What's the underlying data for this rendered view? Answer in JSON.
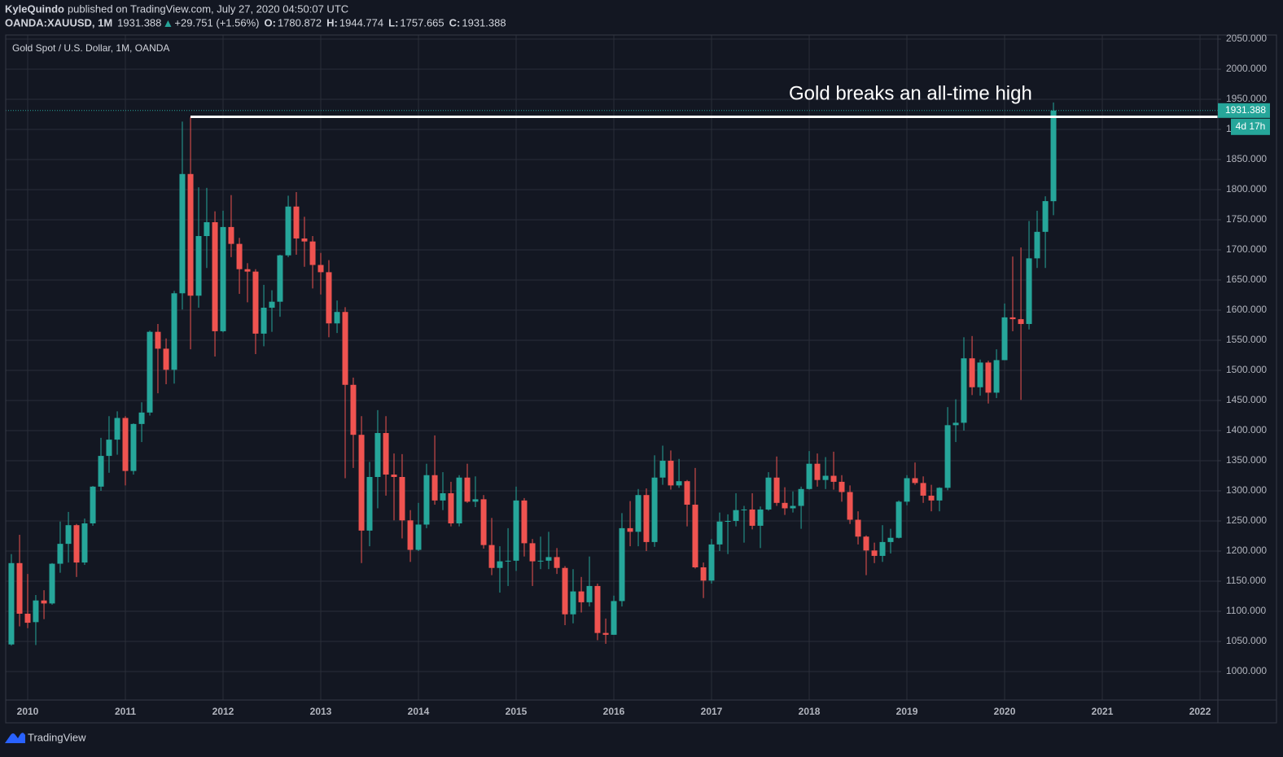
{
  "header": {
    "author": "KyleQuindo",
    "published": "published on TradingView.com, July 27, 2020 04:50:07 UTC",
    "symbol": "OANDA:XAUUSD, 1M",
    "change": "+29.751 (+1.56%)",
    "ohlc_labels": [
      "O:",
      "H:",
      "L:",
      "C:"
    ]
  },
  "footer": {
    "brand": "TradingView"
  },
  "chart_data": {
    "type": "candlestick",
    "title": "Gold Spot / U.S. Dollar, 1M, OANDA",
    "annotation": "Gold breaks an all-time high",
    "countdown": "4d 17h",
    "up_color": "#26a69a",
    "down_color": "#ef5350",
    "grid": true,
    "level_line": {
      "value": 1921,
      "x": 2011.667
    },
    "xlim": [
      2009.775,
      2022.183
    ],
    "xticks": [
      2010,
      2011,
      2012,
      2013,
      2014,
      2015,
      2016,
      2017,
      2018,
      2019,
      2020,
      2021,
      2022
    ],
    "ylim": [
      952.7,
      2056.8
    ],
    "yticks": [
      {
        "value": 1000,
        "label": "1000.000"
      },
      {
        "value": 1050,
        "label": "1050.000"
      },
      {
        "value": 1100,
        "label": "1100.000"
      },
      {
        "value": 1150,
        "label": "1150.000"
      },
      {
        "value": 1200,
        "label": "1200.000"
      },
      {
        "value": 1250,
        "label": "1250.000"
      },
      {
        "value": 1300,
        "label": "1300.000"
      },
      {
        "value": 1350,
        "label": "1350.000"
      },
      {
        "value": 1400,
        "label": "1400.000"
      },
      {
        "value": 1450,
        "label": "1450.000"
      },
      {
        "value": 1500,
        "label": "1500.000"
      },
      {
        "value": 1550,
        "label": "1550.000"
      },
      {
        "value": 1600,
        "label": "1600.000"
      },
      {
        "value": 1650,
        "label": "1650.000"
      },
      {
        "value": 1700,
        "label": "1700.000"
      },
      {
        "value": 1750,
        "label": "1750.000"
      },
      {
        "value": 1800,
        "label": "1800.000"
      },
      {
        "value": 1850,
        "label": "1850.000"
      },
      {
        "value": 1900,
        "label": "1900.000"
      },
      {
        "value": 1950,
        "label": "1950.000"
      },
      {
        "value": 2000,
        "label": "2000.000"
      },
      {
        "value": 2050,
        "label": "2050.000"
      }
    ],
    "x": [
      2009.833,
      2009.917,
      2010.0,
      2010.083,
      2010.167,
      2010.25,
      2010.333,
      2010.417,
      2010.5,
      2010.583,
      2010.667,
      2010.75,
      2010.833,
      2010.917,
      2011.0,
      2011.083,
      2011.167,
      2011.25,
      2011.333,
      2011.417,
      2011.5,
      2011.583,
      2011.667,
      2011.75,
      2011.833,
      2011.917,
      2012.0,
      2012.083,
      2012.167,
      2012.25,
      2012.333,
      2012.417,
      2012.5,
      2012.583,
      2012.667,
      2012.75,
      2012.833,
      2012.917,
      2013.0,
      2013.083,
      2013.167,
      2013.25,
      2013.333,
      2013.417,
      2013.5,
      2013.583,
      2013.667,
      2013.75,
      2013.833,
      2013.917,
      2014.0,
      2014.083,
      2014.167,
      2014.25,
      2014.333,
      2014.417,
      2014.5,
      2014.583,
      2014.667,
      2014.75,
      2014.833,
      2014.917,
      2015.0,
      2015.083,
      2015.167,
      2015.25,
      2015.333,
      2015.417,
      2015.5,
      2015.583,
      2015.667,
      2015.75,
      2015.833,
      2015.917,
      2016.0,
      2016.083,
      2016.167,
      2016.25,
      2016.333,
      2016.417,
      2016.5,
      2016.583,
      2016.667,
      2016.75,
      2016.833,
      2016.917,
      2017.0,
      2017.083,
      2017.167,
      2017.25,
      2017.333,
      2017.417,
      2017.5,
      2017.583,
      2017.667,
      2017.75,
      2017.833,
      2017.917,
      2018.0,
      2018.083,
      2018.167,
      2018.25,
      2018.333,
      2018.417,
      2018.5,
      2018.583,
      2018.667,
      2018.75,
      2018.833,
      2018.917,
      2019.0,
      2019.083,
      2019.167,
      2019.25,
      2019.333,
      2019.417,
      2019.5,
      2019.583,
      2019.667,
      2019.75,
      2019.833,
      2019.917,
      2020.0,
      2020.083,
      2020.167,
      2020.25,
      2020.333,
      2020.417,
      2020.5
    ],
    "open": [
      1045,
      1180,
      1096,
      1082,
      1118,
      1113,
      1179,
      1212,
      1243,
      1181,
      1246,
      1307,
      1358,
      1385,
      1421,
      1333,
      1411,
      1430,
      1564,
      1536,
      1501,
      1628,
      1826,
      1624,
      1723,
      1746,
      1565,
      1738,
      1710,
      1668,
      1664,
      1561,
      1604,
      1614,
      1691,
      1772,
      1719,
      1714,
      1675,
      1663,
      1578,
      1597,
      1476,
      1393,
      1234,
      1323,
      1396,
      1327,
      1323,
      1251,
      1202,
      1244,
      1326,
      1284,
      1296,
      1246,
      1322,
      1282,
      1286,
      1210,
      1172,
      1183,
      1184,
      1284,
      1213,
      1183,
      1184,
      1190,
      1172,
      1095,
      1133,
      1115,
      1142,
      1064,
      1061,
      1117,
      1238,
      1232,
      1293,
      1215,
      1322,
      1350,
      1309,
      1316,
      1277,
      1173,
      1151,
      1211,
      1249,
      1250,
      1268,
      1269,
      1242,
      1269,
      1322,
      1280,
      1271,
      1275,
      1303,
      1345,
      1318,
      1325,
      1315,
      1298,
      1252,
      1224,
      1201,
      1192,
      1215,
      1222,
      1282,
      1321,
      1313,
      1292,
      1284,
      1305,
      1409,
      1413,
      1520,
      1472,
      1513,
      1463,
      1517,
      1588,
      1585,
      1577,
      1686,
      1730,
      1780.872
    ],
    "high": [
      1195,
      1227,
      1162,
      1127,
      1135,
      1180,
      1249,
      1265,
      1245,
      1254,
      1308,
      1388,
      1424,
      1432,
      1424,
      1412,
      1447,
      1566,
      1577,
      1553,
      1632,
      1913,
      1921,
      1804,
      1803,
      1764,
      1765,
      1791,
      1720,
      1678,
      1668,
      1642,
      1633,
      1692,
      1790,
      1796,
      1755,
      1723,
      1695,
      1683,
      1616,
      1605,
      1488,
      1424,
      1348,
      1434,
      1424,
      1362,
      1361,
      1268,
      1280,
      1345,
      1392,
      1331,
      1315,
      1326,
      1345,
      1324,
      1293,
      1255,
      1208,
      1238,
      1307,
      1288,
      1220,
      1224,
      1232,
      1205,
      1175,
      1170,
      1157,
      1191,
      1146,
      1088,
      1126,
      1263,
      1283,
      1303,
      1304,
      1359,
      1375,
      1367,
      1353,
      1318,
      1338,
      1181,
      1220,
      1264,
      1261,
      1296,
      1275,
      1296,
      1274,
      1331,
      1357,
      1306,
      1299,
      1307,
      1366,
      1362,
      1356,
      1365,
      1326,
      1309,
      1266,
      1226,
      1214,
      1243,
      1237,
      1284,
      1326,
      1347,
      1324,
      1310,
      1306,
      1439,
      1452,
      1555,
      1557,
      1518,
      1516,
      1535,
      1611,
      1689,
      1704,
      1748,
      1765,
      1789,
      1944.774
    ],
    "low": [
      1043,
      1075,
      1072,
      1044,
      1087,
      1111,
      1164,
      1181,
      1157,
      1177,
      1242,
      1300,
      1330,
      1360,
      1309,
      1327,
      1381,
      1425,
      1462,
      1477,
      1478,
      1601,
      1535,
      1604,
      1670,
      1523,
      1563,
      1688,
      1627,
      1613,
      1527,
      1540,
      1564,
      1589,
      1688,
      1692,
      1672,
      1636,
      1626,
      1555,
      1562,
      1321,
      1338,
      1180,
      1208,
      1271,
      1292,
      1251,
      1221,
      1182,
      1200,
      1238,
      1277,
      1268,
      1241,
      1241,
      1280,
      1273,
      1204,
      1160,
      1131,
      1142,
      1167,
      1191,
      1142,
      1170,
      1170,
      1162,
      1077,
      1080,
      1098,
      1108,
      1052,
      1046,
      1061,
      1108,
      1208,
      1208,
      1200,
      1207,
      1310,
      1302,
      1305,
      1241,
      1171,
      1122,
      1146,
      1200,
      1195,
      1241,
      1214,
      1236,
      1205,
      1267,
      1275,
      1260,
      1264,
      1237,
      1302,
      1307,
      1303,
      1302,
      1282,
      1245,
      1211,
      1160,
      1180,
      1182,
      1196,
      1221,
      1276,
      1310,
      1280,
      1266,
      1266,
      1301,
      1381,
      1400,
      1459,
      1458,
      1445,
      1454,
      1517,
      1565,
      1451,
      1568,
      1670,
      1670,
      1757.665
    ],
    "close": [
      1180,
      1096,
      1081,
      1118,
      1113,
      1179,
      1212,
      1243,
      1181,
      1246,
      1307,
      1358,
      1385,
      1421,
      1333,
      1411,
      1430,
      1564,
      1536,
      1501,
      1628,
      1826,
      1624,
      1723,
      1746,
      1565,
      1738,
      1710,
      1668,
      1664,
      1561,
      1604,
      1614,
      1691,
      1772,
      1719,
      1714,
      1675,
      1663,
      1578,
      1597,
      1476,
      1393,
      1234,
      1323,
      1396,
      1327,
      1323,
      1251,
      1202,
      1244,
      1326,
      1284,
      1296,
      1246,
      1322,
      1282,
      1286,
      1210,
      1172,
      1183,
      1184,
      1284,
      1213,
      1183,
      1184,
      1190,
      1172,
      1095,
      1133,
      1115,
      1142,
      1064,
      1061,
      1117,
      1238,
      1232,
      1293,
      1215,
      1322,
      1350,
      1309,
      1316,
      1277,
      1173,
      1151,
      1211,
      1249,
      1250,
      1268,
      1269,
      1242,
      1269,
      1322,
      1280,
      1271,
      1275,
      1303,
      1345,
      1318,
      1325,
      1315,
      1298,
      1252,
      1224,
      1201,
      1192,
      1215,
      1222,
      1282,
      1321,
      1313,
      1292,
      1284,
      1305,
      1409,
      1413,
      1520,
      1472,
      1513,
      1463,
      1517,
      1588,
      1585,
      1577,
      1686,
      1730,
      1781,
      1931.388
    ]
  }
}
